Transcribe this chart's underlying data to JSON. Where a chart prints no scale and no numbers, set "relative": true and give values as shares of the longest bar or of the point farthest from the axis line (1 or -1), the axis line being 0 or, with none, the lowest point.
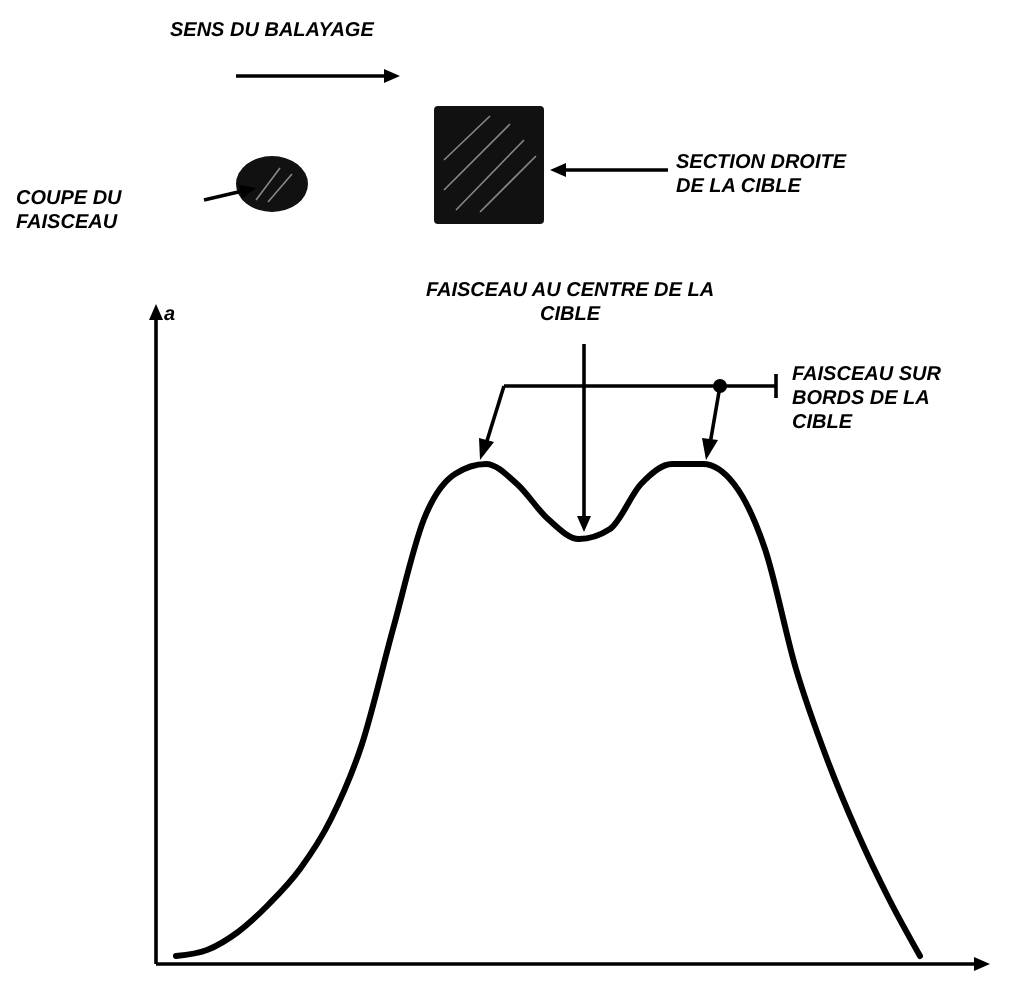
{
  "chart_data": {
    "type": "line",
    "relative": true,
    "categories": [
      null,
      null,
      null,
      null,
      null,
      null,
      null,
      null,
      null,
      null,
      null,
      null,
      null,
      null,
      null,
      null,
      null,
      null,
      null,
      null,
      null,
      null,
      null,
      null,
      null
    ],
    "series": [
      {
        "color": "#000000",
        "values": [
          0.016,
          0.028,
          0.064,
          0.12,
          0.19,
          0.29,
          0.44,
          0.67,
          0.89,
          0.98,
          1.0,
          0.96,
          0.89,
          0.85,
          0.87,
          0.96,
          1.0,
          1.0,
          0.96,
          0.83,
          0.59,
          0.41,
          0.26,
          0.13,
          0.016
        ]
      }
    ],
    "marker": "none",
    "line_style": "solid",
    "annotations": [
      "SENS DU BALAYAGE",
      "COUPE DU FAISCEAU",
      "SECTION DROITE DE LA CIBLE",
      "FAISCEAU AU CENTRE DE LA CIBLE",
      "FAISCEAU SUR BORDS DE LA CIBLE",
      "a"
    ]
  }
}
